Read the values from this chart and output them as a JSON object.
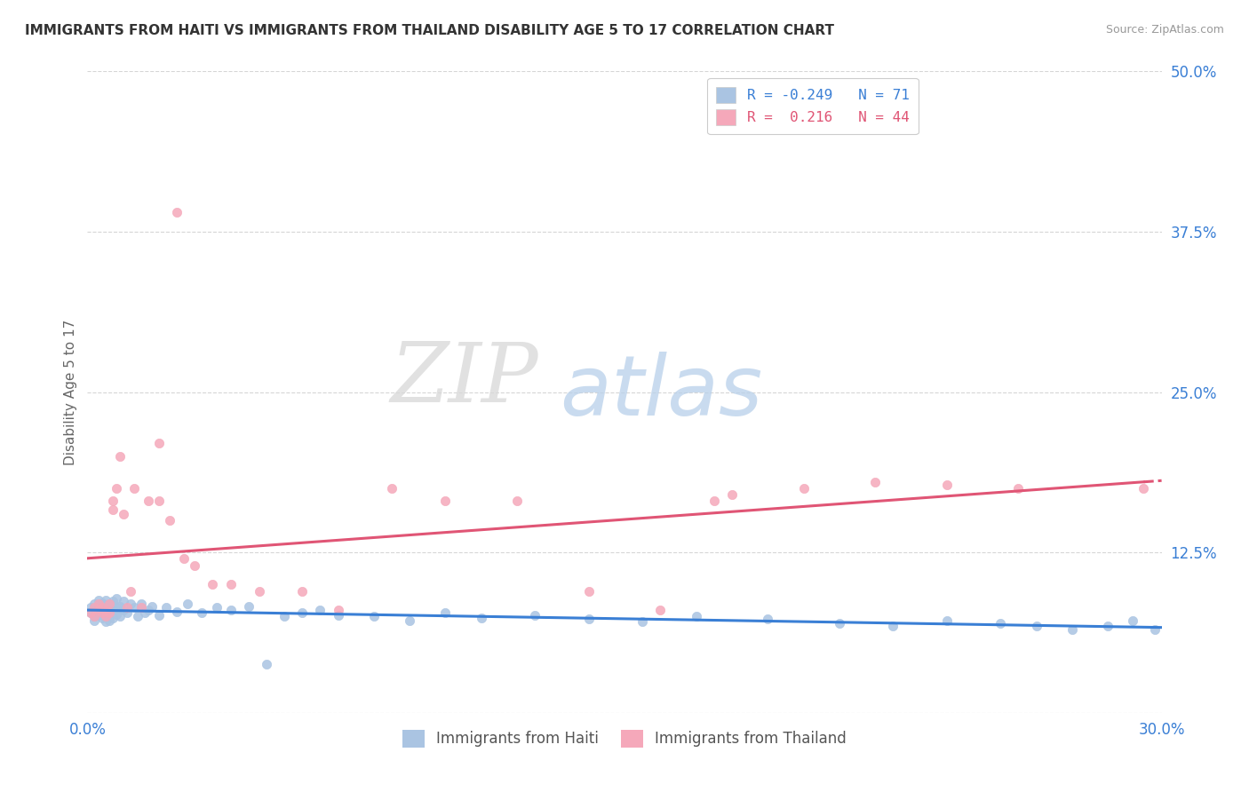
{
  "title": "IMMIGRANTS FROM HAITI VS IMMIGRANTS FROM THAILAND DISABILITY AGE 5 TO 17 CORRELATION CHART",
  "source": "Source: ZipAtlas.com",
  "ylabel": "Disability Age 5 to 17",
  "xlim": [
    0.0,
    0.3
  ],
  "ylim": [
    0.0,
    0.5
  ],
  "xticks": [
    0.0,
    0.05,
    0.1,
    0.15,
    0.2,
    0.25,
    0.3
  ],
  "xtick_labels": [
    "0.0%",
    "",
    "",
    "",
    "",
    "",
    "30.0%"
  ],
  "ytick_positions": [
    0.0,
    0.125,
    0.25,
    0.375,
    0.5
  ],
  "ytick_labels": [
    "",
    "12.5%",
    "25.0%",
    "37.5%",
    "50.0%"
  ],
  "haiti_R": -0.249,
  "haiti_N": 71,
  "thailand_R": 0.216,
  "thailand_N": 44,
  "haiti_color": "#aac4e2",
  "thailand_color": "#f5a8ba",
  "haiti_line_color": "#3a7fd5",
  "thailand_line_color": "#e05575",
  "grid_color": "#cccccc",
  "title_color": "#333333",
  "axis_label_color": "#3a7fd5",
  "legend_label_haiti": "Immigrants from Haiti",
  "legend_label_thailand": "Immigrants from Thailand",
  "haiti_x": [
    0.001,
    0.001,
    0.002,
    0.002,
    0.002,
    0.003,
    0.003,
    0.003,
    0.003,
    0.004,
    0.004,
    0.004,
    0.004,
    0.005,
    0.005,
    0.005,
    0.005,
    0.005,
    0.006,
    0.006,
    0.006,
    0.006,
    0.007,
    0.007,
    0.007,
    0.008,
    0.008,
    0.008,
    0.009,
    0.009,
    0.01,
    0.01,
    0.011,
    0.012,
    0.013,
    0.014,
    0.015,
    0.016,
    0.017,
    0.018,
    0.02,
    0.022,
    0.025,
    0.028,
    0.032,
    0.036,
    0.04,
    0.045,
    0.05,
    0.055,
    0.06,
    0.065,
    0.07,
    0.08,
    0.09,
    0.1,
    0.11,
    0.125,
    0.14,
    0.155,
    0.17,
    0.19,
    0.21,
    0.225,
    0.24,
    0.255,
    0.265,
    0.275,
    0.285,
    0.292,
    0.298
  ],
  "haiti_y": [
    0.078,
    0.082,
    0.075,
    0.085,
    0.072,
    0.08,
    0.088,
    0.076,
    0.083,
    0.079,
    0.086,
    0.074,
    0.081,
    0.077,
    0.084,
    0.071,
    0.088,
    0.075,
    0.083,
    0.078,
    0.085,
    0.072,
    0.08,
    0.087,
    0.074,
    0.082,
    0.077,
    0.089,
    0.075,
    0.083,
    0.08,
    0.087,
    0.078,
    0.085,
    0.082,
    0.075,
    0.085,
    0.078,
    0.08,
    0.083,
    0.076,
    0.082,
    0.079,
    0.085,
    0.078,
    0.082,
    0.08,
    0.083,
    0.038,
    0.075,
    0.078,
    0.08,
    0.076,
    0.075,
    0.072,
    0.078,
    0.074,
    0.076,
    0.073,
    0.071,
    0.075,
    0.073,
    0.07,
    0.068,
    0.072,
    0.07,
    0.068,
    0.065,
    0.068,
    0.072,
    0.065
  ],
  "thailand_x": [
    0.001,
    0.002,
    0.002,
    0.003,
    0.003,
    0.004,
    0.004,
    0.005,
    0.005,
    0.006,
    0.006,
    0.007,
    0.007,
    0.008,
    0.009,
    0.01,
    0.011,
    0.012,
    0.013,
    0.015,
    0.017,
    0.02,
    0.023,
    0.027,
    0.03,
    0.035,
    0.04,
    0.048,
    0.06,
    0.07,
    0.085,
    0.1,
    0.12,
    0.14,
    0.16,
    0.18,
    0.2,
    0.22,
    0.24,
    0.26,
    0.02,
    0.025,
    0.175,
    0.295
  ],
  "thailand_y": [
    0.078,
    0.082,
    0.075,
    0.08,
    0.085,
    0.078,
    0.082,
    0.075,
    0.08,
    0.085,
    0.078,
    0.158,
    0.165,
    0.175,
    0.2,
    0.155,
    0.082,
    0.095,
    0.175,
    0.082,
    0.165,
    0.165,
    0.15,
    0.12,
    0.115,
    0.1,
    0.1,
    0.095,
    0.095,
    0.08,
    0.175,
    0.165,
    0.165,
    0.095,
    0.08,
    0.17,
    0.175,
    0.18,
    0.178,
    0.175,
    0.21,
    0.39,
    0.165,
    0.175
  ]
}
